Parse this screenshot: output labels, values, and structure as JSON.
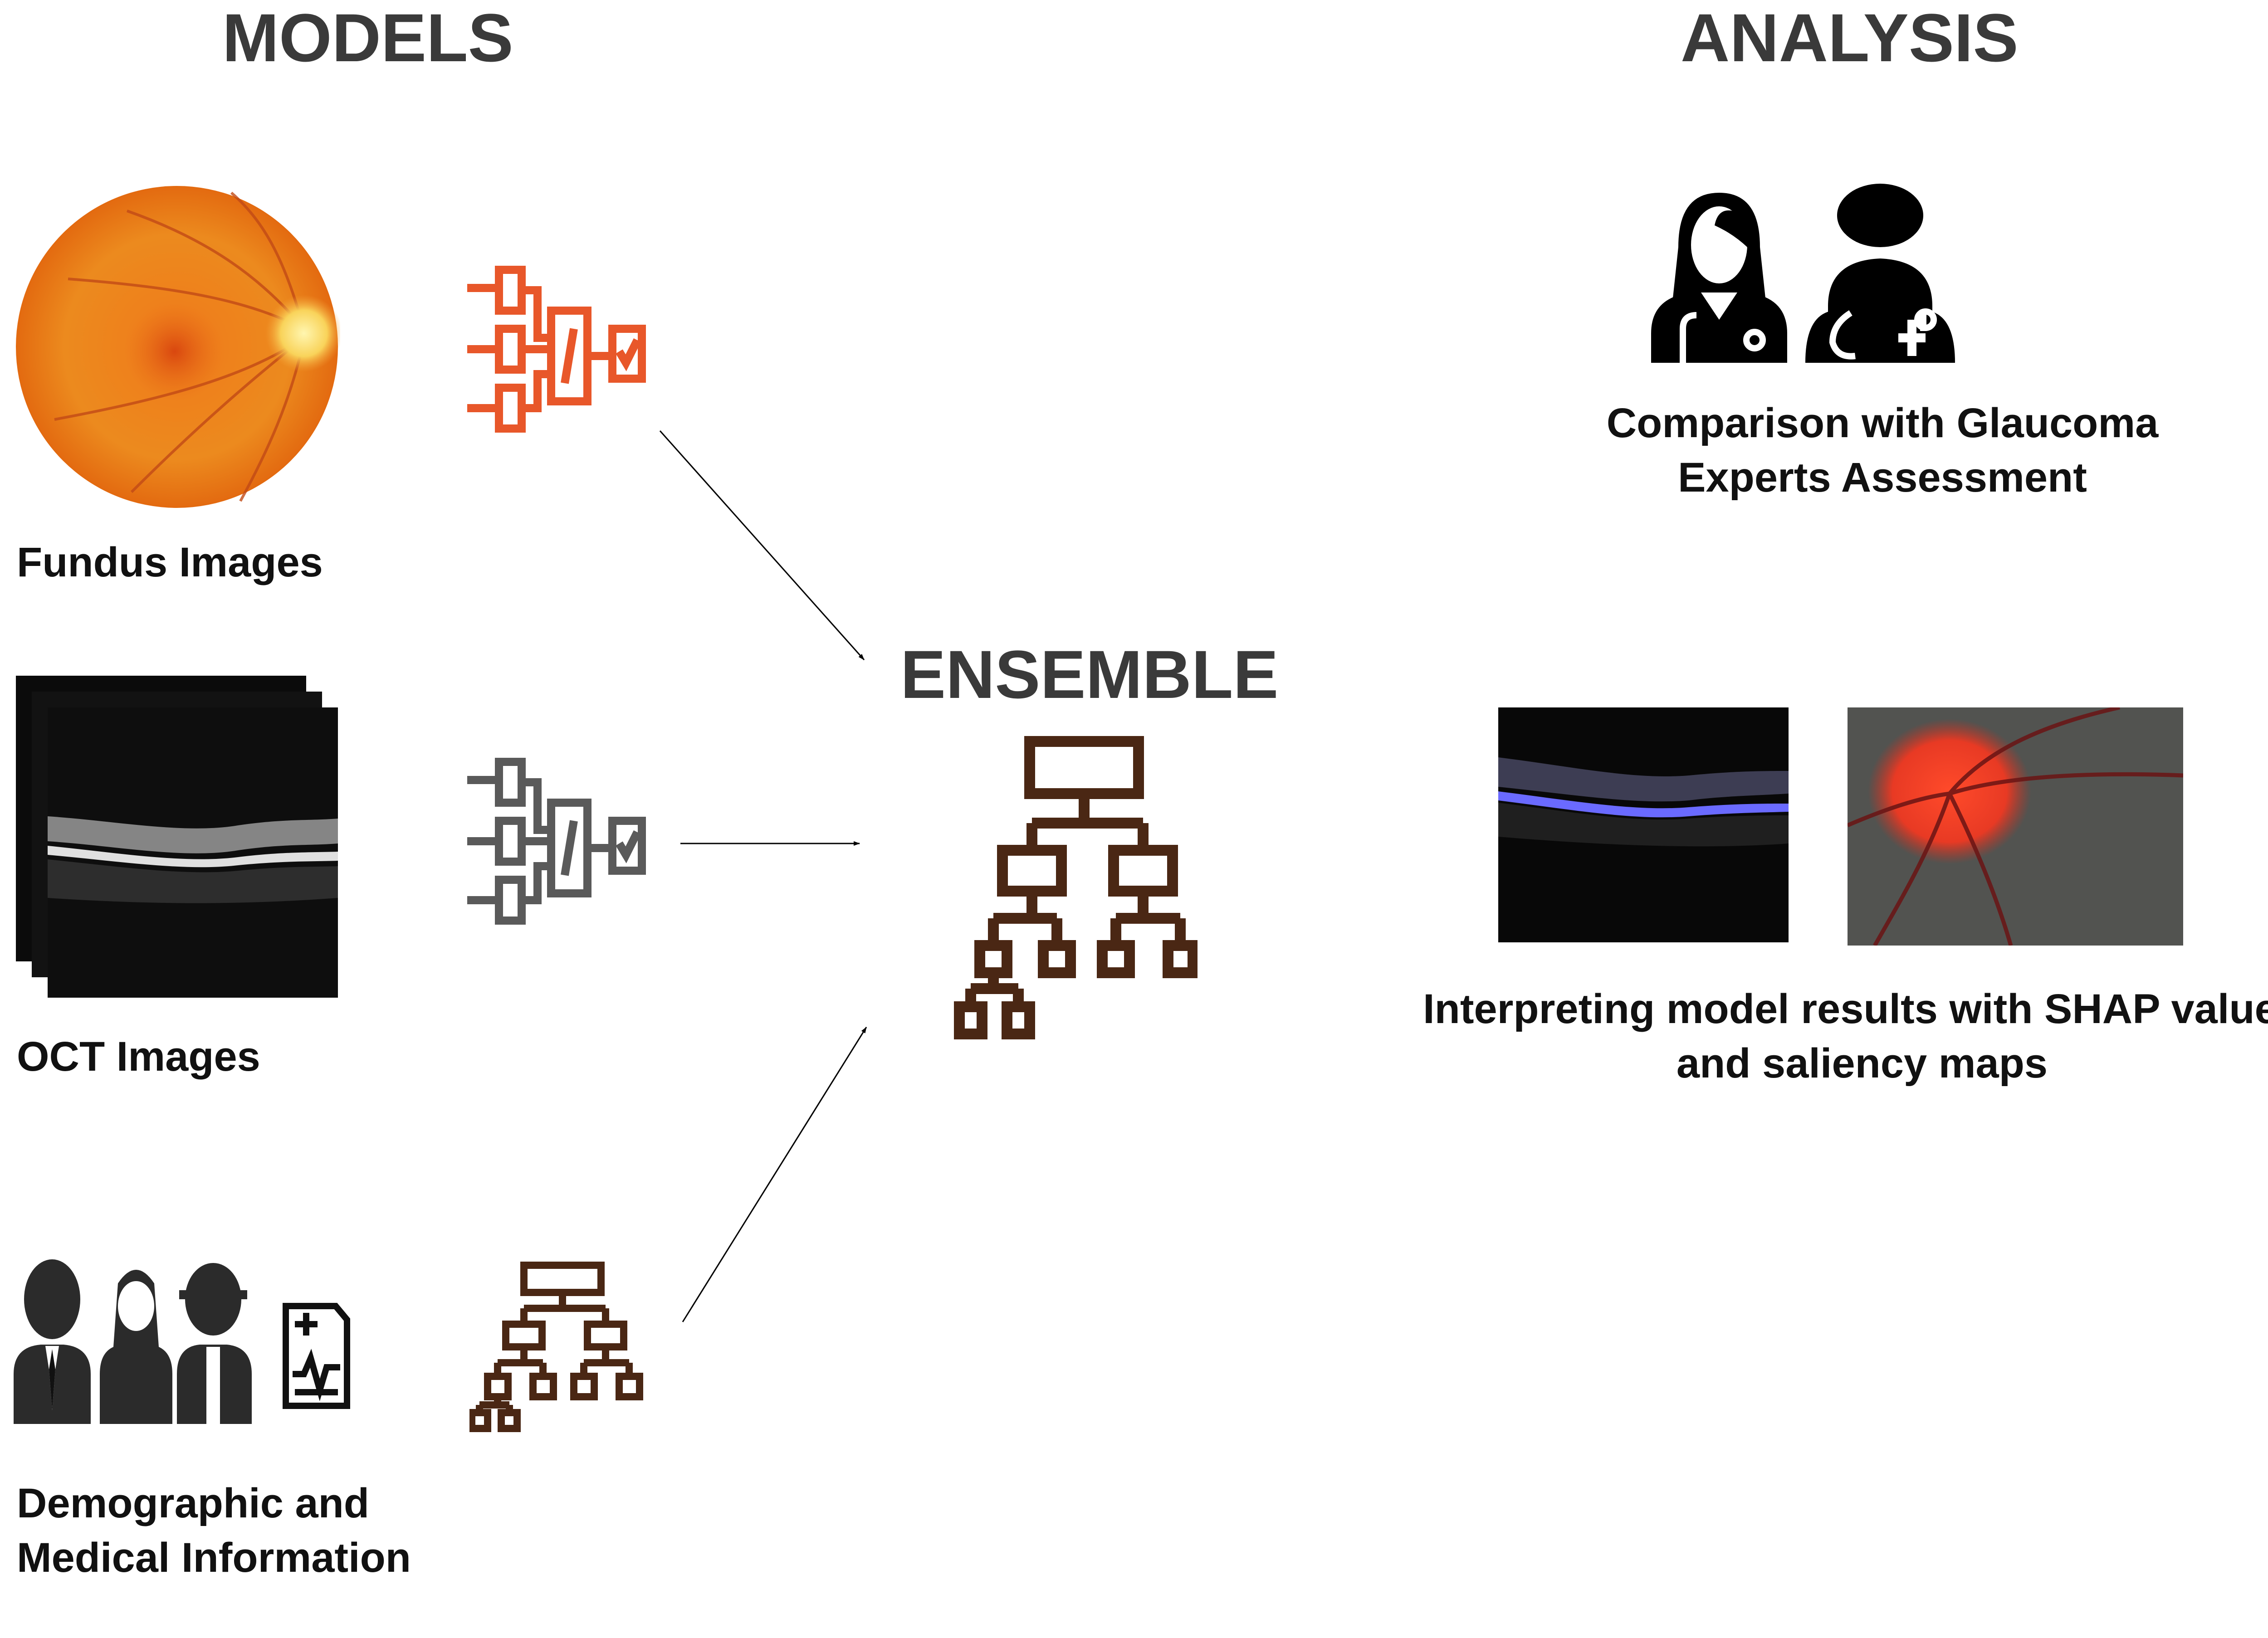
{
  "headings": {
    "models": "MODELS",
    "analysis": "ANALYSIS",
    "ensemble": "ENSEMBLE"
  },
  "inputs": {
    "fundus": "Fundus Images",
    "oct": "OCT Images",
    "demographic_line1": "Demographic and",
    "demographic_line2": "Medical Information"
  },
  "analysis": {
    "comparison_line1": "Comparison with Glaucoma",
    "comparison_line2": "Experts Assessment",
    "interpret_line1": "Interpreting model results with SHAP values",
    "interpret_line2": "and saliency maps"
  },
  "colors": {
    "heading": "#3a3a3a",
    "cnn_fundus": "#e8572a",
    "cnn_oct": "#5a5a5a",
    "tree": "#4a2714",
    "arrow": "#000000"
  },
  "icons": {
    "cnn": "neural-network-icon",
    "tree": "decision-tree-icon",
    "people": "people-icon",
    "doctors": "doctor-icon",
    "report": "medical-report-icon"
  }
}
